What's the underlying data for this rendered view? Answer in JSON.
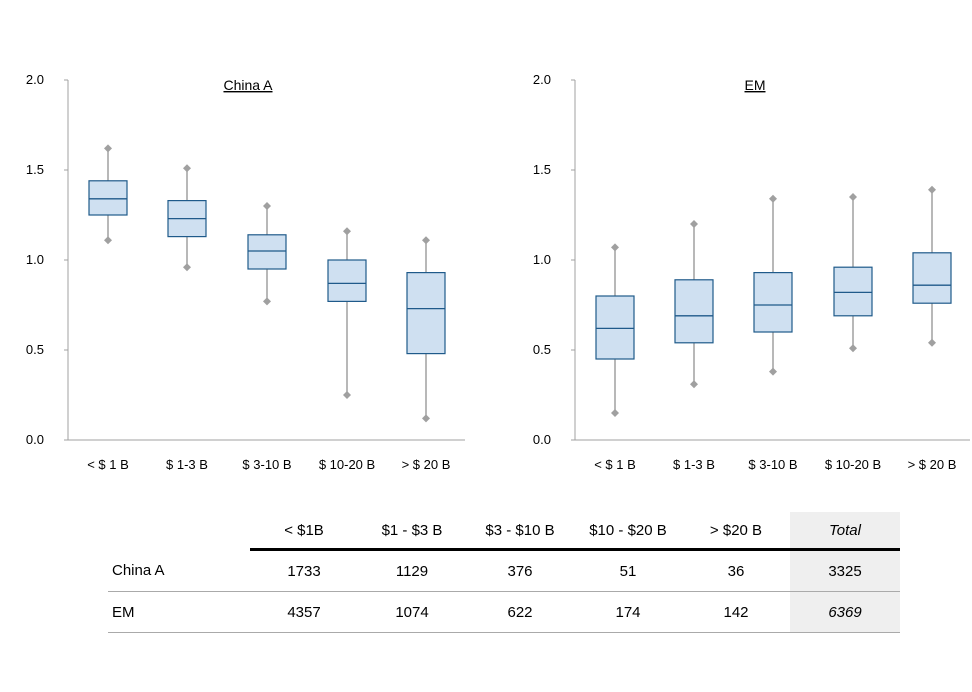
{
  "chart_data": [
    {
      "type": "box",
      "title": "China A",
      "ylim": [
        0,
        2
      ],
      "yticks": [
        "0.0",
        "0.5",
        "1.0",
        "1.5",
        "2.0"
      ],
      "categories": [
        "< $ 1 B",
        "$ 1-3 B",
        "$ 3-10 B",
        "$ 10-20 B",
        "> $ 20 B"
      ],
      "boxes": [
        {
          "min": 1.11,
          "q1": 1.25,
          "median": 1.34,
          "q3": 1.44,
          "max": 1.62
        },
        {
          "min": 0.96,
          "q1": 1.13,
          "median": 1.23,
          "q3": 1.33,
          "max": 1.51
        },
        {
          "min": 0.77,
          "q1": 0.95,
          "median": 1.05,
          "q3": 1.14,
          "max": 1.3
        },
        {
          "min": 0.25,
          "q1": 0.77,
          "median": 0.87,
          "q3": 1.0,
          "max": 1.16
        },
        {
          "min": 0.12,
          "q1": 0.48,
          "median": 0.73,
          "q3": 0.93,
          "max": 1.11
        }
      ]
    },
    {
      "type": "box",
      "title": "EM",
      "ylim": [
        0,
        2
      ],
      "yticks": [
        "0.0",
        "0.5",
        "1.0",
        "1.5",
        "2.0"
      ],
      "categories": [
        "< $ 1 B",
        "$ 1-3 B",
        "$ 3-10 B",
        "$ 10-20 B",
        "> $ 20 B"
      ],
      "boxes": [
        {
          "min": 0.15,
          "q1": 0.45,
          "median": 0.62,
          "q3": 0.8,
          "max": 1.07
        },
        {
          "min": 0.31,
          "q1": 0.54,
          "median": 0.69,
          "q3": 0.89,
          "max": 1.2
        },
        {
          "min": 0.38,
          "q1": 0.6,
          "median": 0.75,
          "q3": 0.93,
          "max": 1.34
        },
        {
          "min": 0.51,
          "q1": 0.69,
          "median": 0.82,
          "q3": 0.96,
          "max": 1.35
        },
        {
          "min": 0.54,
          "q1": 0.76,
          "median": 0.86,
          "q3": 1.04,
          "max": 1.39
        }
      ]
    }
  ],
  "colors": {
    "box_fill": "#cfe0f1",
    "box_stroke": "#1f5a8a",
    "whisker": "#a0a0a0",
    "axis": "#a0a0a0"
  },
  "table": {
    "headers": [
      "< $1B",
      "$1 - $3 B",
      "$3 - $10 B",
      "$10 - $20 B",
      "> $20 B",
      "Total"
    ],
    "rows": [
      {
        "label": "China A",
        "values": [
          "1733",
          "1129",
          "376",
          "51",
          "36"
        ],
        "total": "3325"
      },
      {
        "label": "EM",
        "values": [
          "4357",
          "1074",
          "622",
          "174",
          "142"
        ],
        "total": "6369"
      }
    ]
  }
}
